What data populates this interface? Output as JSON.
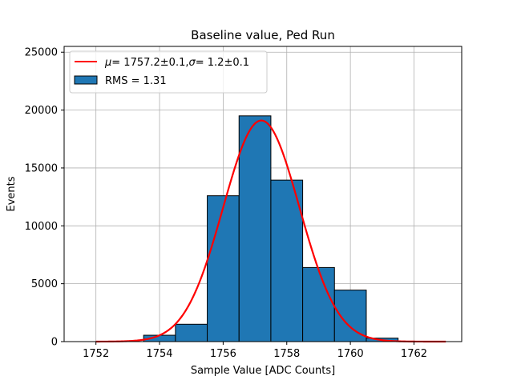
{
  "chart_data": {
    "type": "bar",
    "title": "Baseline value, Ped Run",
    "xlabel": "Sample Value [ADC Counts]",
    "ylabel": "Events",
    "xlim": [
      1751.0,
      1763.5
    ],
    "ylim": [
      0,
      25500
    ],
    "x_ticks": [
      1752,
      1754,
      1756,
      1758,
      1760,
      1762
    ],
    "x_tick_labels": [
      "1752",
      "1754",
      "1756",
      "1758",
      "1760",
      "1762"
    ],
    "y_ticks": [
      0,
      5000,
      10000,
      15000,
      20000,
      25000
    ],
    "y_tick_labels": [
      "0",
      "5000",
      "10000",
      "15000",
      "20000",
      "25000"
    ],
    "grid": true,
    "histogram": {
      "name": "RMS = 1.31",
      "color": "#1f77b4",
      "edgecolor": "#000000",
      "bin_edges": [
        1751.5,
        1752.5,
        1753.5,
        1754.5,
        1755.5,
        1756.5,
        1757.5,
        1758.5,
        1759.5,
        1760.5,
        1761.5,
        1762.5
      ],
      "counts": [
        0,
        0,
        550,
        1500,
        12600,
        19500,
        13950,
        6400,
        4450,
        300,
        0
      ]
    },
    "fit": {
      "name": "μ = 1757.2±0.1, σ = 1.2±0.1",
      "color": "#ff0000",
      "type": "gaussian",
      "mu": 1757.2,
      "sigma": 1.2,
      "amplitude": 19100,
      "x_range": [
        1752.0,
        1763.0
      ]
    },
    "legend": {
      "position": "top-left",
      "entries": [
        {
          "kind": "line",
          "label_prefix": "μ",
          "label_mu": "= 1757.2±0.1,",
          "label_sigma_symbol": "σ",
          "label_sigma": "= 1.2±0.1"
        },
        {
          "kind": "patch",
          "label": "RMS = 1.31"
        }
      ]
    }
  }
}
